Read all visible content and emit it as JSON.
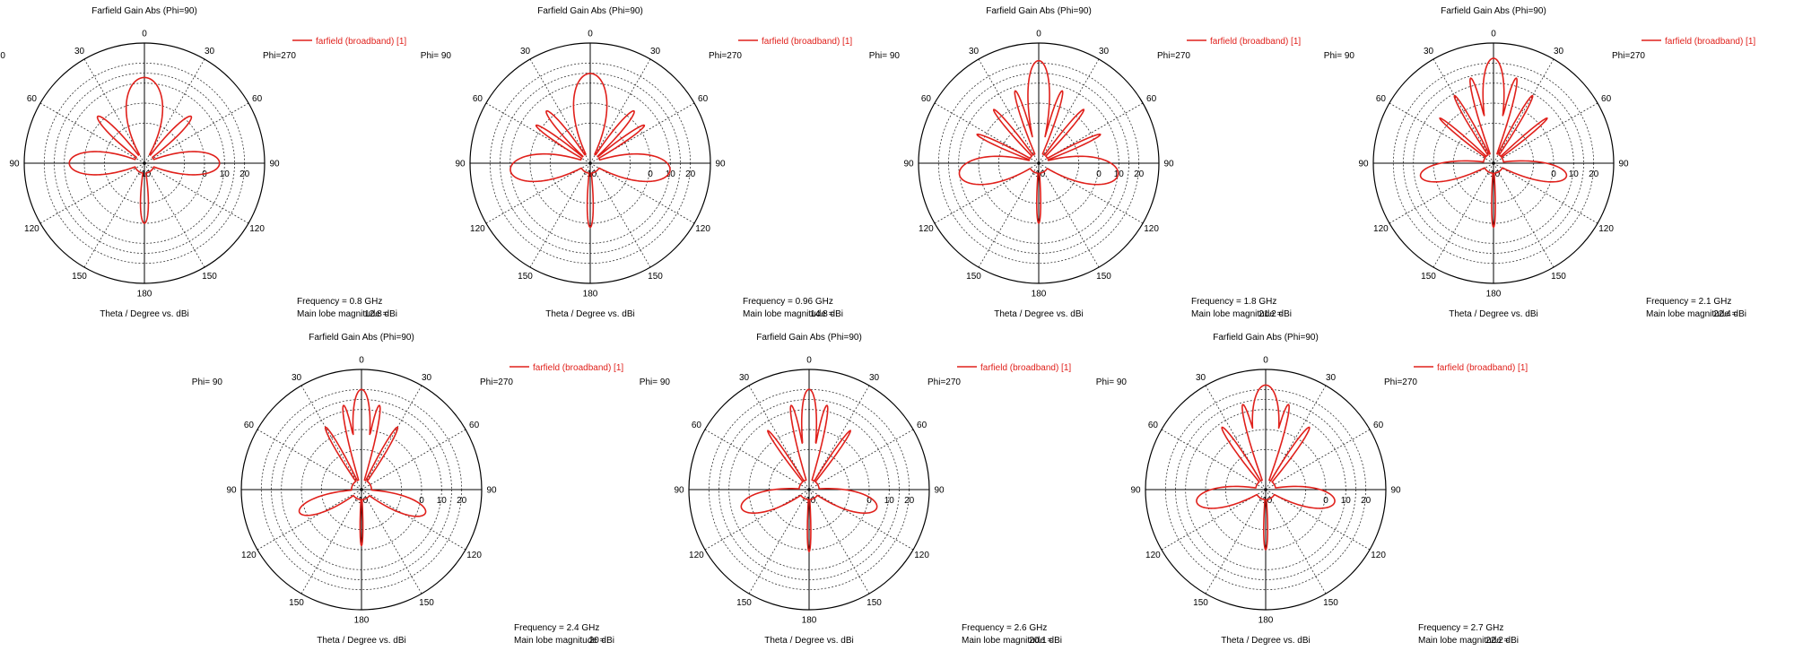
{
  "colors": {
    "pattern": "#e0201b",
    "axis": "#000000",
    "grid": "#333333"
  },
  "shared": {
    "left_phi_label": "Phi= 90",
    "right_phi_label": "Phi=270",
    "angle_labels": [
      "0",
      "30",
      "60",
      "90",
      "120",
      "150",
      "180"
    ],
    "radial_labels": [
      "-10",
      "0",
      "10",
      "20"
    ],
    "inner_zero_label": "10",
    "freq_prefix": "Frequency = ",
    "magnitude_label": "Main lobe magnitude =",
    "legend_marker": "line"
  },
  "chart_data": [
    {
      "type": "polar-line",
      "title": "Farfield Gain Abs (Phi=90)",
      "xlabel": "Theta / Degree vs. dBi",
      "legend": "farfield (broadband) [1]",
      "frequency": "0.8 GHz",
      "main_lobe": "12.8 dBi",
      "r_range": [
        -30,
        30
      ],
      "r_ticks": [
        -10,
        0,
        10,
        20
      ],
      "lobes": [
        {
          "theta": 0,
          "gain": 12.8,
          "width": 25
        },
        {
          "theta": 90,
          "gain": 7.5,
          "width": 22
        },
        {
          "theta": -90,
          "gain": 7.5,
          "width": 22
        },
        {
          "theta": 45,
          "gain": 3,
          "width": 10
        },
        {
          "theta": -45,
          "gain": 3,
          "width": 10
        },
        {
          "theta": 180,
          "gain": 0,
          "width": 12
        }
      ]
    },
    {
      "type": "polar-line",
      "title": "Farfield Gain Abs (Phi=90)",
      "xlabel": "Theta / Degree vs. dBi",
      "legend": "farfield (broadband) [1]",
      "frequency": "0.96 GHz",
      "main_lobe": "14.8 dBi",
      "r_range": [
        -30,
        30
      ],
      "r_ticks": [
        -10,
        0,
        10,
        20
      ],
      "lobes": [
        {
          "theta": 0,
          "gain": 14.8,
          "width": 20
        },
        {
          "theta": 95,
          "gain": 10,
          "width": 22
        },
        {
          "theta": -95,
          "gain": 10,
          "width": 22
        },
        {
          "theta": 40,
          "gain": 4,
          "width": 8
        },
        {
          "theta": -40,
          "gain": 4,
          "width": 8
        },
        {
          "theta": 55,
          "gain": 3,
          "width": 6
        },
        {
          "theta": -55,
          "gain": 3,
          "width": 6
        },
        {
          "theta": 180,
          "gain": 2,
          "width": 8
        }
      ]
    },
    {
      "type": "polar-line",
      "title": "Farfield Gain Abs (Phi=90)",
      "xlabel": "Theta / Degree vs. dBi",
      "legend": "farfield (broadband) [1]",
      "frequency": "1.8 GHz",
      "main_lobe": "21.2 dBi",
      "r_range": [
        -30,
        30
      ],
      "r_ticks": [
        -10,
        0,
        10,
        20
      ],
      "lobes": [
        {
          "theta": 0,
          "gain": 21.2,
          "width": 8
        },
        {
          "theta": 98,
          "gain": 10,
          "width": 22
        },
        {
          "theta": -98,
          "gain": 10,
          "width": 22
        },
        {
          "theta": 18,
          "gain": 8,
          "width": 5
        },
        {
          "theta": -18,
          "gain": 8,
          "width": 5
        },
        {
          "theta": 40,
          "gain": 5,
          "width": 5
        },
        {
          "theta": -40,
          "gain": 5,
          "width": 5
        },
        {
          "theta": 65,
          "gain": 4,
          "width": 5
        },
        {
          "theta": -65,
          "gain": 4,
          "width": 5
        },
        {
          "theta": 180,
          "gain": 0,
          "width": 6
        }
      ]
    },
    {
      "type": "polar-line",
      "title": "Farfield Gain Abs (Phi=90)",
      "xlabel": "Theta / Degree vs. dBi",
      "legend": "farfield (broadband) [1]",
      "frequency": "2.1 GHz",
      "main_lobe": "22.4 dBi",
      "r_range": [
        -30,
        30
      ],
      "r_ticks": [
        -10,
        0,
        10,
        20
      ],
      "lobes": [
        {
          "theta": 0,
          "gain": 22.4,
          "width": 7
        },
        {
          "theta": 15,
          "gain": 14,
          "width": 4
        },
        {
          "theta": -15,
          "gain": 14,
          "width": 4
        },
        {
          "theta": 30,
          "gain": 9,
          "width": 4
        },
        {
          "theta": -30,
          "gain": 9,
          "width": 4
        },
        {
          "theta": 50,
          "gain": 5,
          "width": 4
        },
        {
          "theta": -50,
          "gain": 5,
          "width": 4
        },
        {
          "theta": 100,
          "gain": 7,
          "width": 18
        },
        {
          "theta": -100,
          "gain": 7,
          "width": 18
        },
        {
          "theta": 180,
          "gain": 2,
          "width": 5
        }
      ]
    },
    {
      "type": "polar-line",
      "title": "Farfield Gain Abs (Phi=90)",
      "xlabel": "Theta / Degree vs. dBi",
      "legend": "farfield (broadband) [1]",
      "frequency": "2.4 GHz",
      "main_lobe": "20 dBi",
      "r_range": [
        -30,
        30
      ],
      "r_ticks": [
        -10,
        0,
        10,
        20
      ],
      "lobes": [
        {
          "theta": 0,
          "gain": 20,
          "width": 7
        },
        {
          "theta": 12,
          "gain": 13,
          "width": 4
        },
        {
          "theta": -12,
          "gain": 13,
          "width": 4
        },
        {
          "theta": 30,
          "gain": 6,
          "width": 5
        },
        {
          "theta": -30,
          "gain": 6,
          "width": 5
        },
        {
          "theta": 110,
          "gain": 4,
          "width": 20
        },
        {
          "theta": -110,
          "gain": 3,
          "width": 20
        },
        {
          "theta": 180,
          "gain": -2,
          "width": 5
        }
      ]
    },
    {
      "type": "polar-line",
      "title": "Farfield Gain Abs (Phi=90)",
      "xlabel": "Theta / Degree vs. dBi",
      "legend": "farfield (broadband) [1]",
      "frequency": "2.6 GHz",
      "main_lobe": "20.1 dBi",
      "r_range": [
        -30,
        30
      ],
      "r_ticks": [
        -10,
        0,
        10,
        20
      ],
      "lobes": [
        {
          "theta": 0,
          "gain": 20.1,
          "width": 6
        },
        {
          "theta": 12,
          "gain": 13,
          "width": 4
        },
        {
          "theta": -12,
          "gain": 13,
          "width": 4
        },
        {
          "theta": 35,
          "gain": 6,
          "width": 4
        },
        {
          "theta": -35,
          "gain": 6,
          "width": 4
        },
        {
          "theta": 105,
          "gain": 5,
          "width": 22
        },
        {
          "theta": -105,
          "gain": 5,
          "width": 22
        },
        {
          "theta": 180,
          "gain": 1,
          "width": 5
        }
      ]
    },
    {
      "type": "polar-line",
      "title": "Farfield Gain Abs (Phi=90)",
      "xlabel": "Theta / Degree vs. dBi",
      "legend": "farfield (broadband) [1]",
      "frequency": "2.7 GHz",
      "main_lobe": "22.2 dBi",
      "r_range": [
        -30,
        30
      ],
      "r_ticks": [
        -10,
        0,
        10,
        20
      ],
      "lobes": [
        {
          "theta": 0,
          "gain": 22.2,
          "width": 9
        },
        {
          "theta": 15,
          "gain": 14,
          "width": 4
        },
        {
          "theta": -15,
          "gain": 14,
          "width": 4
        },
        {
          "theta": 35,
          "gain": 8,
          "width": 5
        },
        {
          "theta": -35,
          "gain": 8,
          "width": 5
        },
        {
          "theta": 100,
          "gain": 5,
          "width": 22
        },
        {
          "theta": -100,
          "gain": 5,
          "width": 22
        },
        {
          "theta": 180,
          "gain": 0,
          "width": 6
        }
      ]
    }
  ]
}
